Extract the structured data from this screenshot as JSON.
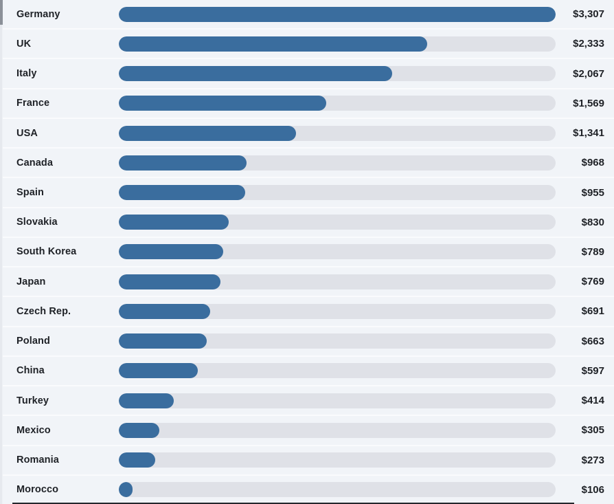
{
  "chart_data": {
    "type": "bar",
    "orientation": "horizontal",
    "title": "",
    "xlabel": "",
    "ylabel": "",
    "value_prefix": "$",
    "max_value": 3307,
    "xlim": [
      0,
      3307
    ],
    "grid": false,
    "legend": false,
    "categories": [
      "Germany",
      "UK",
      "Italy",
      "France",
      "USA",
      "Canada",
      "Spain",
      "Slovakia",
      "South Korea",
      "Japan",
      "Czech Rep.",
      "Poland",
      "China",
      "Turkey",
      "Mexico",
      "Romania",
      "Morocco"
    ],
    "values": [
      3307,
      2333,
      2067,
      1569,
      1341,
      968,
      955,
      830,
      789,
      769,
      691,
      663,
      597,
      414,
      305,
      273,
      106
    ],
    "value_labels": [
      "$3,307",
      "$2,333",
      "$2,067",
      "$1,569",
      "$1,341",
      "$968",
      "$955",
      "$830",
      "$789",
      "$769",
      "$691",
      "$663",
      "$597",
      "$414",
      "$305",
      "$273",
      "$106"
    ],
    "colors": {
      "bar": "#3a6d9e",
      "track": "#dfe1e7",
      "background": "#f1f4f8",
      "text": "#1e2126",
      "row_separator": "#ffffff",
      "baseline": "#23262b"
    }
  }
}
